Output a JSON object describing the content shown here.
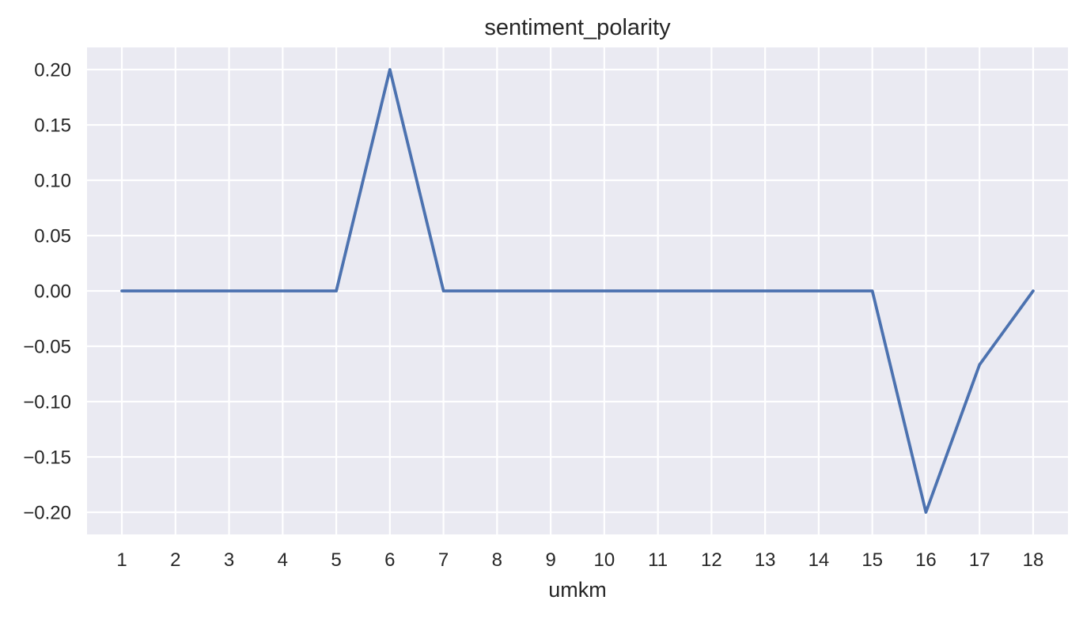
{
  "chart_data": {
    "type": "line",
    "title": "sentiment_polarity",
    "xlabel": "umkm",
    "ylabel": "",
    "x": [
      1,
      2,
      3,
      4,
      5,
      6,
      7,
      8,
      9,
      10,
      11,
      12,
      13,
      14,
      15,
      16,
      17,
      18
    ],
    "series": [
      {
        "values": [
          0,
          0,
          0,
          0,
          0,
          0.2,
          0,
          0,
          0,
          0,
          0,
          0,
          0,
          0,
          0,
          -0.2,
          -0.0667,
          0
        ],
        "color": "#4c72b0"
      }
    ],
    "x_ticks": [
      "1",
      "2",
      "3",
      "4",
      "5",
      "6",
      "7",
      "8",
      "9",
      "10",
      "11",
      "12",
      "13",
      "14",
      "15",
      "16",
      "17",
      "18"
    ],
    "y_ticks": [
      0.2,
      0.15,
      0.1,
      0.05,
      0,
      -0.05,
      -0.1,
      -0.15,
      -0.2
    ],
    "y_tick_labels": [
      "0.20",
      "0.15",
      "0.10",
      "0.05",
      "0.00",
      "−0.05",
      "−0.10",
      "−0.15",
      "−0.20"
    ],
    "xlim": [
      0.35,
      18.65
    ],
    "ylim": [
      -0.22,
      0.22
    ],
    "grid": true,
    "legend": "none",
    "background_color": "#eaeaf2",
    "grid_color": "#ffffff"
  }
}
